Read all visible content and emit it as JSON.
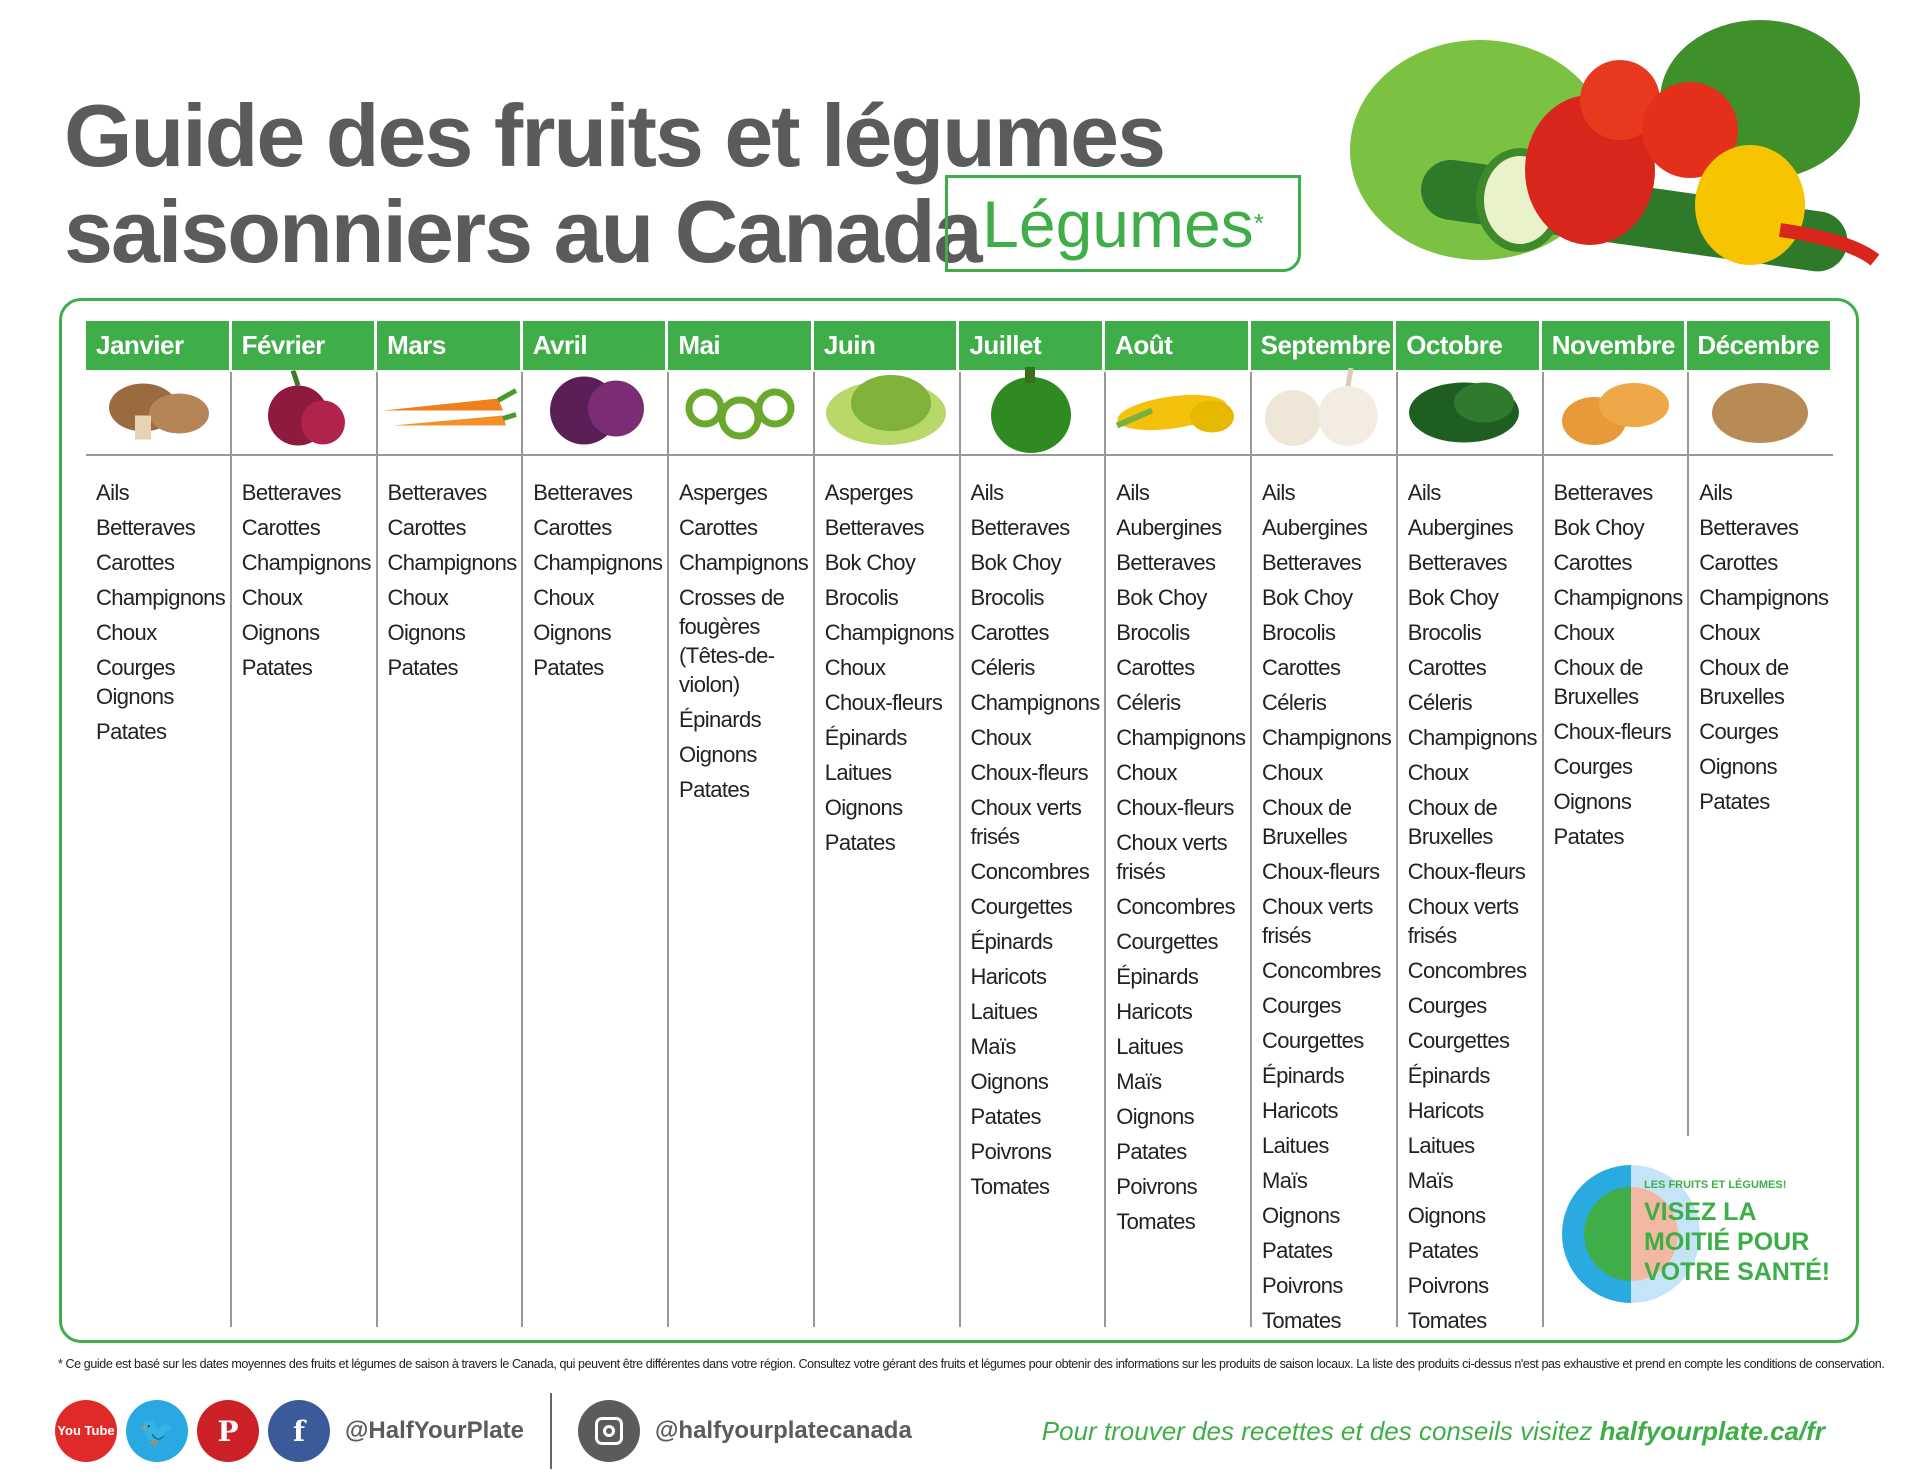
{
  "title": {
    "line1": "Guide des fruits et légumes",
    "line2": "saisonniers au Canada",
    "badge": "Légumes",
    "badge_mark": "*"
  },
  "months": [
    {
      "name": "Janvier",
      "icon": "mushroom-icon",
      "items": [
        "Ails",
        "Betteraves",
        "Carottes",
        "Champignons",
        "Choux",
        "Courges\nOignons",
        "Patates"
      ]
    },
    {
      "name": "Février",
      "icon": "beet-icon",
      "items": [
        "Betteraves",
        "Carottes",
        "Champignons",
        "Choux",
        "Oignons",
        "Patates"
      ]
    },
    {
      "name": "Mars",
      "icon": "carrot-icon",
      "items": [
        "Betteraves",
        "Carottes",
        "Champignons",
        "Choux",
        "Oignons",
        "Patates"
      ]
    },
    {
      "name": "Avril",
      "icon": "red-cabbage-icon",
      "items": [
        "Betteraves",
        "Carottes",
        "Champignons",
        "Choux",
        "Oignons",
        "Patates"
      ]
    },
    {
      "name": "Mai",
      "icon": "fiddlehead-icon",
      "items": [
        "Asperges",
        "Carottes",
        "Champignons",
        "Crosses de\nfougères\n(Têtes-de-\nviolon)",
        "Épinards",
        "Oignons",
        "Patates"
      ]
    },
    {
      "name": "Juin",
      "icon": "lettuce-icon",
      "items": [
        "Asperges",
        "Betteraves",
        "Bok Choy",
        "Brocolis",
        "Champignons",
        "Choux",
        "Choux-fleurs",
        "Épinards",
        "Laitues",
        "Oignons",
        "Patates"
      ]
    },
    {
      "name": "Juillet",
      "icon": "green-pepper-icon",
      "items": [
        "Ails",
        "Betteraves",
        "Bok Choy",
        "Brocolis",
        "Carottes",
        "Céleris",
        "Champignons",
        "Choux",
        "Choux-fleurs",
        "Choux verts\nfrisés",
        "Concombres",
        "Courgettes",
        "Épinards",
        "Haricots",
        "Laitues",
        "Maïs",
        "Oignons",
        "Patates",
        "Poivrons",
        "Tomates"
      ]
    },
    {
      "name": "Août",
      "icon": "corn-icon",
      "items": [
        "Ails",
        "Aubergines",
        "Betteraves",
        "Bok Choy",
        "Brocolis",
        "Carottes",
        "Céleris",
        "Champignons",
        "Choux",
        "Choux-fleurs",
        "Choux verts\nfrisés",
        "Concombres",
        "Courgettes",
        "Épinards",
        "Haricots",
        "Laitues",
        "Maïs",
        "Oignons",
        "Patates",
        "Poivrons",
        "Tomates"
      ]
    },
    {
      "name": "Septembre",
      "icon": "garlic-icon",
      "items": [
        "Ails",
        "Aubergines",
        "Betteraves",
        "Bok Choy",
        "Brocolis",
        "Carottes",
        "Céleris",
        "Champignons",
        "Choux",
        "Choux de\nBruxelles",
        "Choux-fleurs",
        "Choux verts\nfrisés",
        "Concombres",
        "Courges",
        "Courgettes",
        "Épinards",
        "Haricots",
        "Laitues",
        "Maïs",
        "Oignons",
        "Patates",
        "Poivrons",
        "Tomates"
      ]
    },
    {
      "name": "Octobre",
      "icon": "kale-icon",
      "items": [
        "Ails",
        "Aubergines",
        "Betteraves",
        "Bok Choy",
        "Brocolis",
        "Carottes",
        "Céleris",
        "Champignons",
        "Choux",
        "Choux de\nBruxelles",
        "Choux-fleurs",
        "Choux verts\nfrisés",
        "Concombres",
        "Courges",
        "Courgettes",
        "Épinards",
        "Haricots",
        "Laitues",
        "Maïs",
        "Oignons",
        "Patates",
        "Poivrons",
        "Tomates"
      ]
    },
    {
      "name": "Novembre",
      "icon": "squash-icon",
      "items": [
        "Betteraves",
        "Bok Choy",
        "Carottes",
        "Champignons",
        "Choux",
        "Choux de\nBruxelles",
        "Choux-fleurs",
        "Courges",
        "Oignons",
        "Patates"
      ]
    },
    {
      "name": "Décembre",
      "icon": "potato-icon",
      "items": [
        "Ails",
        "Betteraves",
        "Carottes",
        "Champignons",
        "Choux",
        "Choux de\nBruxelles",
        "Courges",
        "Oignons",
        "Patates"
      ]
    }
  ],
  "logo": {
    "small": "LES FRUITS ET LÉGUMES!",
    "big": "VISEZ LA\nMOITIÉ POUR\nVOTRE SANTÉ!"
  },
  "footnote": "* Ce guide est basé sur les dates moyennes des fruits et légumes de saison à travers le Canada, qui peuvent être différentes dans votre région. Consultez votre gérant des fruits et légumes pour obtenir des informations sur les produits de saison locaux. La liste des produits ci-dessus n'est pas exhaustive et prend en compte les conditions de conservation.",
  "social": {
    "youtube": "You Tube",
    "handle": "@HalfYourPlate",
    "instagram_handle": "@halfyourplatecanada",
    "tagline": "Pour trouver des recettes et des conseils visitez ",
    "url": "halfyourplate.ca/fr"
  },
  "colors": {
    "green": "#3fae49",
    "grey": "#5a5b5d",
    "youtube": "#e02a2a",
    "twitter": "#29a9e1",
    "pinterest": "#cc2127",
    "facebook": "#3b5a9a"
  }
}
